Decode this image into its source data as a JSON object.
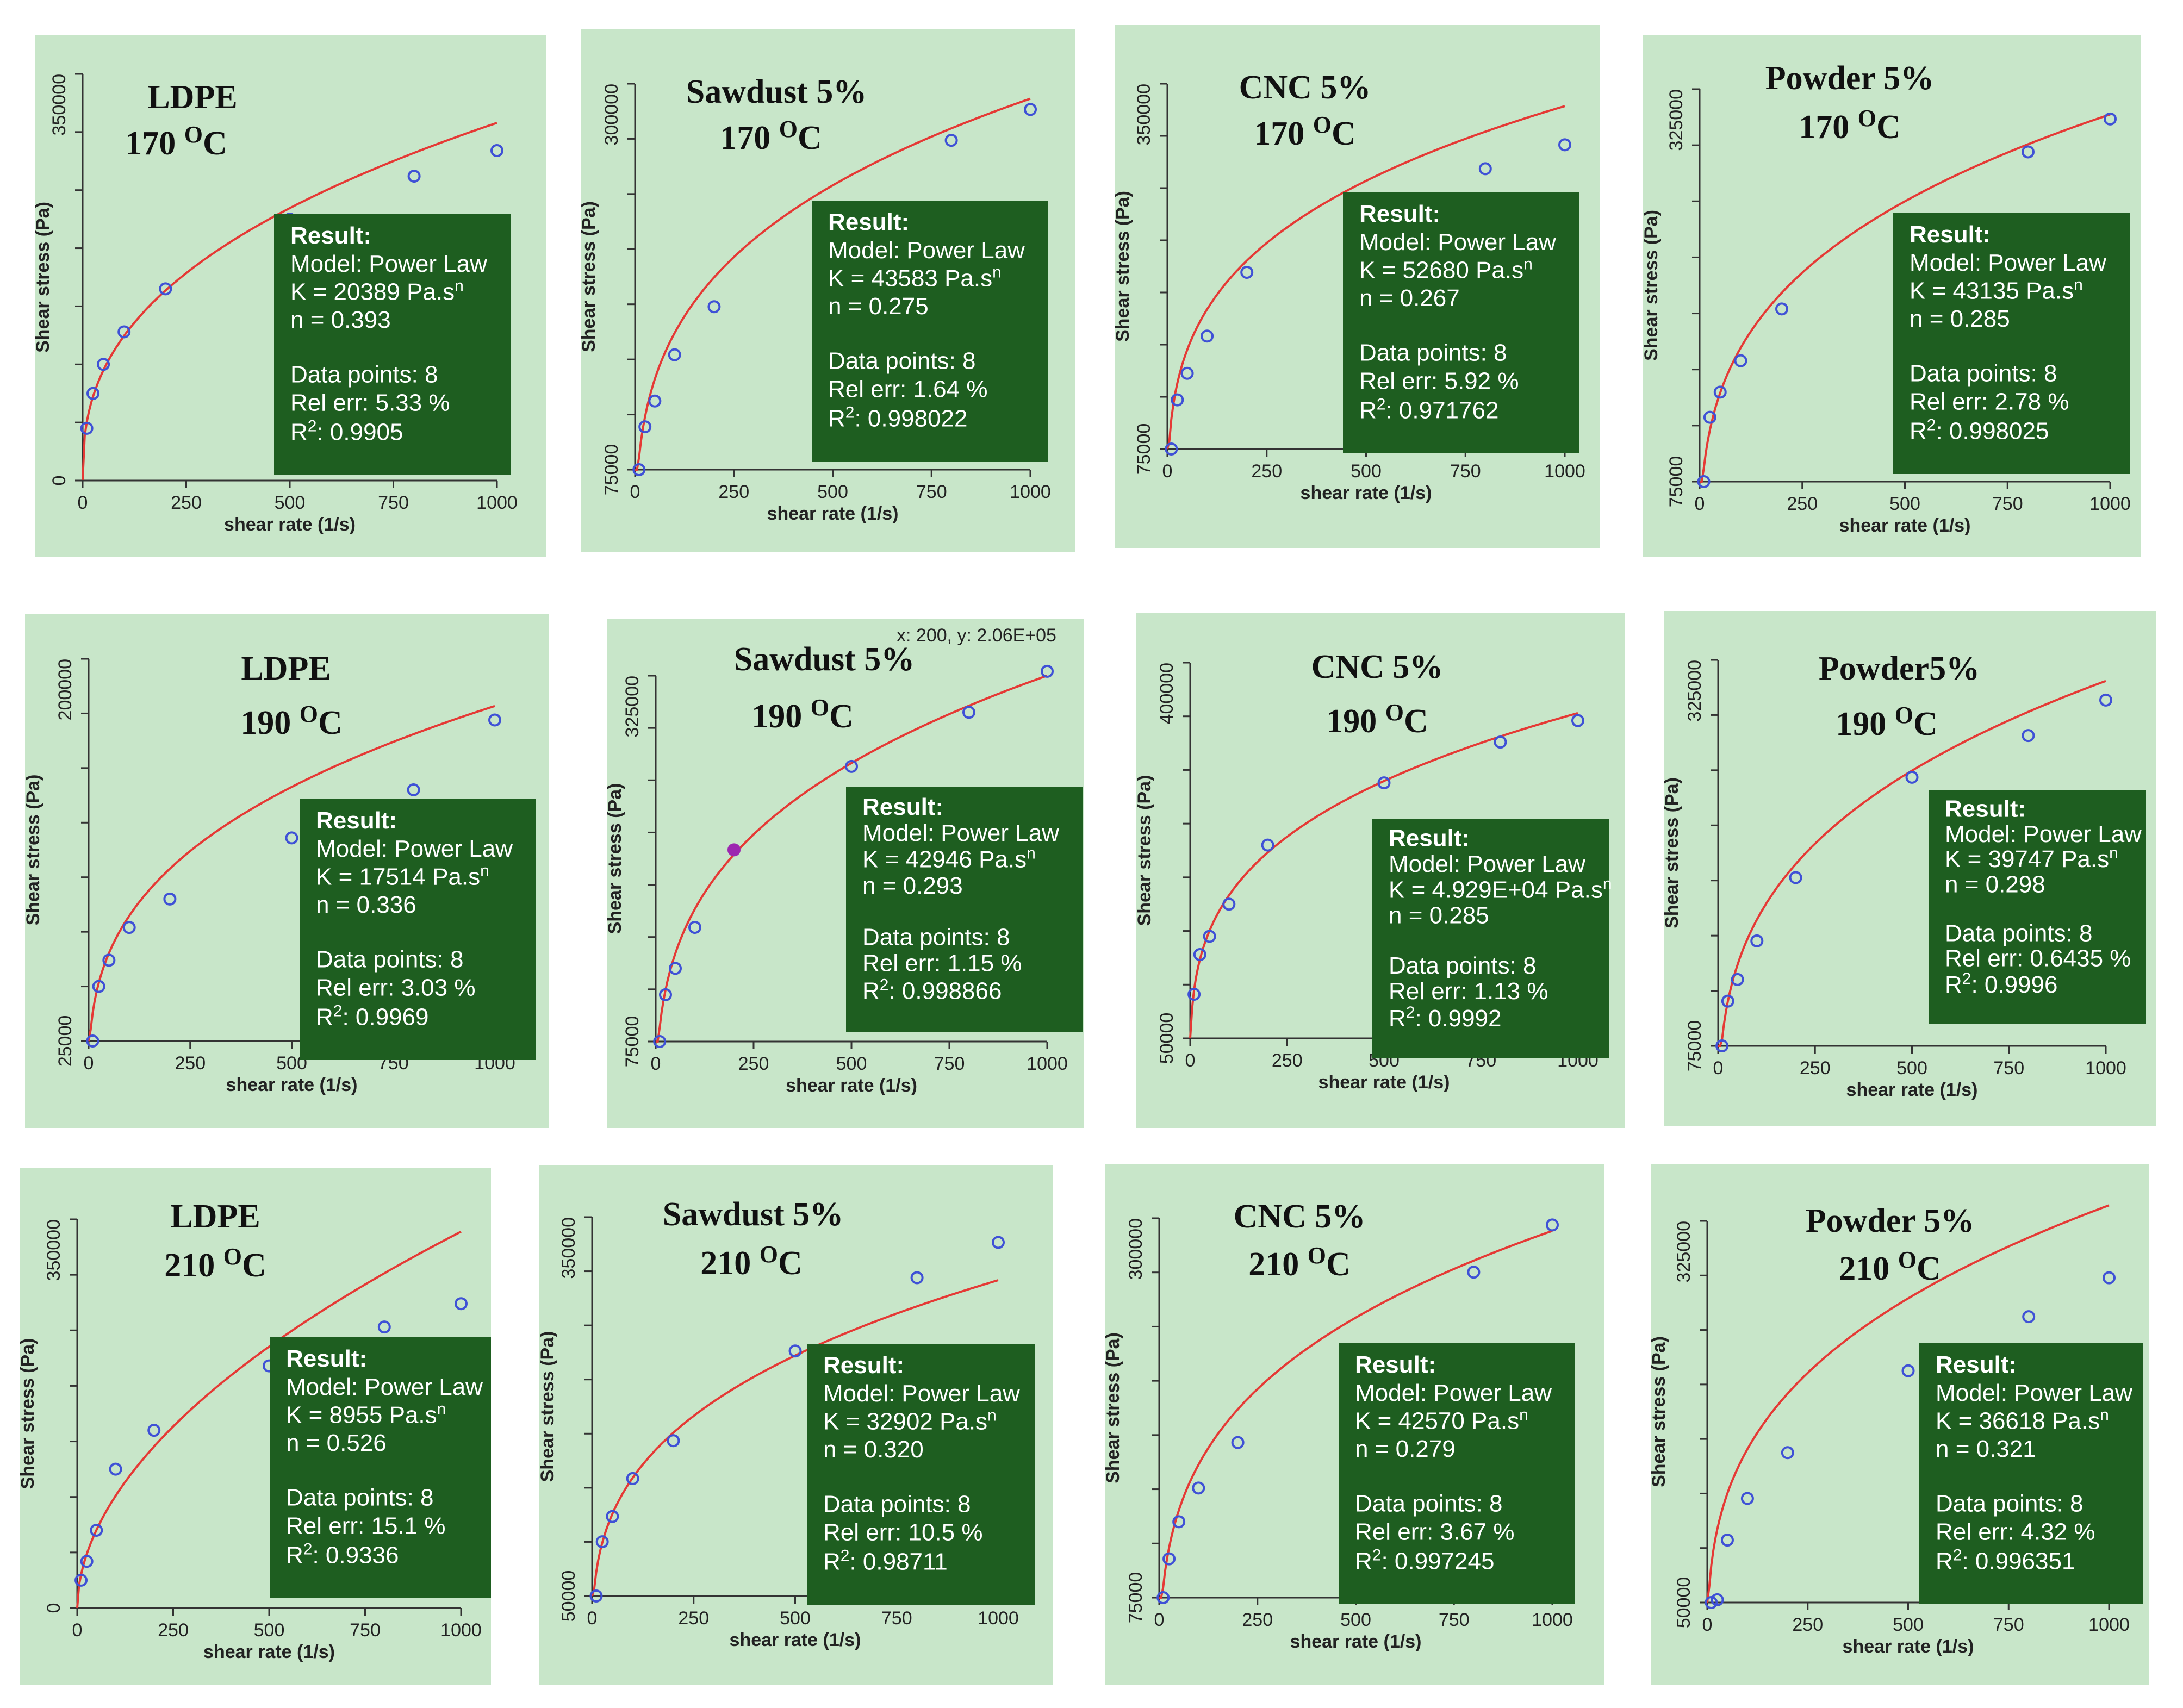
{
  "chart_data": [
    {
      "type": "scatter",
      "title": "LDPE",
      "temperature": "170",
      "temp_unit": "OC",
      "xlabel": "shear rate (1/s)",
      "ylabel": "Shear stress (Pa)",
      "xticks": [
        "0",
        "250",
        "500",
        "750",
        "1000"
      ],
      "ytick_min": "0",
      "ytick_max": "350000",
      "xlim": [
        0,
        1000
      ],
      "ylim": [
        0,
        350000
      ],
      "x": [
        10,
        25,
        50,
        100,
        200,
        500,
        800,
        1000
      ],
      "y": [
        45000,
        75000,
        100000,
        128000,
        165000,
        225000,
        262000,
        284000
      ],
      "fit": {
        "K": 20389,
        "n": 0.393
      },
      "result": {
        "heading": "Result:",
        "model": "Model: Power Law",
        "k_text": "K = 20389 Pa.s",
        "k_sup": "n",
        "n_text": "n = 0.393",
        "points": "Data points: 8",
        "rel_err": "Rel err: 5.33 %",
        "r2_prefix": "R",
        "r2_sup": "2",
        "r2_value": ": 0.9905"
      }
    },
    {
      "type": "scatter",
      "title": "Sawdust 5%",
      "temperature": "170",
      "temp_unit": "OC",
      "xlabel": "shear rate (1/s)",
      "ylabel": "Shear stress (Pa)",
      "xticks": [
        "0",
        "250",
        "500",
        "750",
        "1000"
      ],
      "ytick_min": "75000",
      "ytick_max": "300000",
      "xlim": [
        0,
        1000
      ],
      "ylim": [
        75000,
        300000
      ],
      "x": [
        10,
        25,
        50,
        100,
        200,
        500,
        800,
        1000
      ],
      "y": [
        75000,
        100000,
        115000,
        142000,
        170000,
        228000,
        267000,
        285000
      ],
      "fit": {
        "K": 43583,
        "n": 0.275
      },
      "result": {
        "heading": "Result:",
        "model": "Model: Power Law",
        "k_text": "K = 43583 Pa.s",
        "k_sup": "n",
        "n_text": "n = 0.275",
        "points": "Data points: 8",
        "rel_err": "Rel err: 1.64 %",
        "r2_prefix": "R",
        "r2_sup": "2",
        "r2_value": ": 0.998022"
      }
    },
    {
      "type": "scatter",
      "title": "CNC 5%",
      "temperature": "170",
      "temp_unit": "OC",
      "xlabel": "shear rate (1/s)",
      "ylabel": "Shear stress (Pa)",
      "xticks": [
        "0",
        "250",
        "500",
        "750",
        "1000"
      ],
      "ytick_min": "75000",
      "ytick_max": "350000",
      "xlim": [
        0,
        1000
      ],
      "ylim": [
        75000,
        350000
      ],
      "x": [
        10,
        25,
        50,
        100,
        200,
        500,
        800,
        1000
      ],
      "y": [
        75000,
        112000,
        132000,
        160000,
        208000,
        260000,
        286000,
        304000
      ],
      "fit": {
        "K": 52680,
        "n": 0.267
      },
      "result": {
        "heading": "Result:",
        "model": "Model: Power Law",
        "k_text": "K = 52680 Pa.s",
        "k_sup": "n",
        "n_text": "n = 0.267",
        "points": "Data points: 8",
        "rel_err": "Rel err: 5.92 %",
        "r2_prefix": "R",
        "r2_sup": "2",
        "r2_value": ": 0.971762"
      }
    },
    {
      "type": "scatter",
      "title": "Powder 5%",
      "temperature": "170",
      "temp_unit": "OC",
      "xlabel": "shear rate (1/s)",
      "ylabel": "Shear stress (Pa)",
      "xticks": [
        "0",
        "250",
        "500",
        "750",
        "1000"
      ],
      "ytick_min": "75000",
      "ytick_max": "325000",
      "xlim": [
        0,
        1000
      ],
      "ylim": [
        75000,
        325000
      ],
      "x": [
        10,
        25,
        50,
        100,
        200,
        500,
        800,
        1000
      ],
      "y": [
        75000,
        116000,
        132000,
        152000,
        185000,
        240000,
        285000,
        306000
      ],
      "fit": {
        "K": 43135,
        "n": 0.285
      },
      "result": {
        "heading": "Result:",
        "model": "Model: Power Law",
        "k_text": "K = 43135 Pa.s",
        "k_sup": "n",
        "n_text": "n = 0.285",
        "points": "Data points: 8",
        "rel_err": "Rel err: 2.78 %",
        "r2_prefix": "R",
        "r2_sup": "2",
        "r2_value": ": 0.998025"
      }
    },
    {
      "type": "scatter",
      "title": "LDPE",
      "temperature": "190",
      "temp_unit": "OC",
      "xlabel": "shear rate (1/s)",
      "ylabel": "Shear stress (Pa)",
      "xticks": [
        "0",
        "250",
        "500",
        "750",
        "1000"
      ],
      "ytick_min": "25000",
      "ytick_max": "200000",
      "xlim": [
        0,
        1000
      ],
      "ylim": [
        25000,
        200000
      ],
      "x": [
        10,
        25,
        50,
        100,
        200,
        500,
        800,
        1000
      ],
      "y": [
        25000,
        50000,
        62000,
        77000,
        90000,
        118000,
        140000,
        172000
      ],
      "fit": {
        "K": 17514,
        "n": 0.336
      },
      "result": {
        "heading": "Result:",
        "model": "Model: Power Law",
        "k_text": "K = 17514 Pa.s",
        "k_sup": "n",
        "n_text": "n = 0.336",
        "points": "Data points: 8",
        "rel_err": "Rel err: 3.03 %",
        "r2_prefix": "R",
        "r2_sup": "2",
        "r2_value": ": 0.9969"
      }
    },
    {
      "type": "scatter",
      "title": "Sawdust 5%",
      "temperature": "190",
      "temp_unit": "OC",
      "xlabel": "shear rate (1/s)",
      "ylabel": "Shear stress (Pa)",
      "cursor_readout": "x: 200, y: 2.06E+05",
      "xticks": [
        "0",
        "250",
        "500",
        "750",
        "1000"
      ],
      "ytick_min": "75000",
      "ytick_max": "325000",
      "xlim": [
        0,
        1000
      ],
      "ylim": [
        75000,
        325000
      ],
      "x": [
        10,
        25,
        50,
        100,
        200,
        500,
        800,
        1000
      ],
      "y": [
        75000,
        107000,
        125000,
        153000,
        206000,
        263000,
        300000,
        328000
      ],
      "fit": {
        "K": 42946,
        "n": 0.293
      },
      "result": {
        "heading": "Result:",
        "model": "Model: Power Law",
        "k_text": "K = 42946 Pa.s",
        "k_sup": "n",
        "n_text": "n = 0.293",
        "points": "Data points: 8",
        "rel_err": "Rel err: 1.15 %",
        "r2_prefix": "R",
        "r2_sup": "2",
        "r2_value": ": 0.998866"
      }
    },
    {
      "type": "scatter",
      "title": "CNC 5%",
      "temperature": "190",
      "temp_unit": "OC",
      "xlabel": "shear rate (1/s)",
      "ylabel": "Shear stress (Pa)",
      "xticks": [
        "0",
        "250",
        "500",
        "750",
        "1000"
      ],
      "ytick_min": "50000",
      "ytick_max": "400000",
      "xlim": [
        0,
        1000
      ],
      "ylim": [
        50000,
        400000
      ],
      "x": [
        10,
        25,
        50,
        100,
        200,
        500,
        800,
        1000
      ],
      "y": [
        91000,
        128000,
        145000,
        175000,
        230000,
        288000,
        326000,
        346000
      ],
      "fit": {
        "K": 49290,
        "n": 0.285
      },
      "result": {
        "heading": "Result:",
        "model": "Model: Power Law",
        "k_text": "K = 4.929E+04 Pa.s",
        "k_sup": "n",
        "n_text": "n = 0.285",
        "points": "Data points: 8",
        "rel_err": "Rel err: 1.13 %",
        "r2_prefix": "R",
        "r2_sup": "2",
        "r2_value": ": 0.9992"
      }
    },
    {
      "type": "scatter",
      "title": "Powder5%",
      "temperature": "190",
      "temp_unit": "OC",
      "xlabel": "shear rate (1/s)",
      "ylabel": "Shear stress (Pa)",
      "xticks": [
        "0",
        "250",
        "500",
        "750",
        "1000"
      ],
      "ytick_min": "75000",
      "ytick_max": "325000",
      "xlim": [
        0,
        1000
      ],
      "ylim": [
        75000,
        325000
      ],
      "x": [
        10,
        25,
        50,
        100,
        200,
        500,
        800,
        1000
      ],
      "y": [
        75000,
        104000,
        118000,
        143000,
        184000,
        249000,
        276000,
        299000
      ],
      "fit": {
        "K": 39747,
        "n": 0.298
      },
      "result": {
        "heading": "Result:",
        "model": "Model: Power Law",
        "k_text": "K = 39747 Pa.s",
        "k_sup": "n",
        "n_text": "n = 0.298",
        "points": "Data points: 8",
        "rel_err": "Rel err: 0.6435 %",
        "r2_prefix": "R",
        "r2_sup": "2",
        "r2_value": ": 0.9996"
      }
    },
    {
      "type": "scatter",
      "title": "LDPE",
      "temperature": "210",
      "temp_unit": "OC",
      "xlabel": "shear rate (1/s)",
      "ylabel": "Shear stress (Pa)",
      "xticks": [
        "0",
        "250",
        "500",
        "750",
        "1000"
      ],
      "ytick_min": "0",
      "ytick_max": "350000",
      "xlim": [
        0,
        1000
      ],
      "ylim": [
        0,
        350000
      ],
      "x": [
        10,
        25,
        50,
        100,
        200,
        500,
        800,
        1000
      ],
      "y": [
        25000,
        42000,
        70000,
        125000,
        160000,
        218000,
        253000,
        274000
      ],
      "fit": {
        "K": 8955,
        "n": 0.526
      },
      "result": {
        "heading": "Result:",
        "model": "Model: Power Law",
        "k_text": "K = 8955 Pa.s",
        "k_sup": "n",
        "n_text": "n = 0.526",
        "points": "Data points: 8",
        "rel_err": "Rel err: 15.1 %",
        "r2_prefix": "R",
        "r2_sup": "2",
        "r2_value": ": 0.9336"
      }
    },
    {
      "type": "scatter",
      "title": "Sawdust  5%",
      "temperature": "210",
      "temp_unit": "OC",
      "xlabel": "shear rate (1/s)",
      "ylabel": "Shear stress (Pa)",
      "xticks": [
        "0",
        "250",
        "500",
        "750",
        "1000"
      ],
      "ytick_min": "50000",
      "ytick_max": "350000",
      "xlim": [
        0,
        1000
      ],
      "ylim": [
        50000,
        350000
      ],
      "x": [
        10,
        25,
        50,
        100,
        200,
        500,
        800,
        1000
      ],
      "y": [
        50000,
        93000,
        113000,
        143000,
        173000,
        244000,
        302000,
        330000
      ],
      "fit": {
        "K": 32902,
        "n": 0.32
      },
      "result": {
        "heading": "Result:",
        "model": "Model: Power Law",
        "k_text": "K = 32902 Pa.s",
        "k_sup": "n",
        "n_text": "n = 0.320",
        "points": "Data points: 8",
        "rel_err": "Rel err: 10.5 %",
        "r2_prefix": "R",
        "r2_sup": "2",
        "r2_value": ": 0.98711"
      }
    },
    {
      "type": "scatter",
      "title": "CNC 5%",
      "temperature": "210",
      "temp_unit": "OC",
      "xlabel": "shear rate (1/s)",
      "ylabel": "Shear stress (Pa)",
      "xticks": [
        "0",
        "250",
        "500",
        "750",
        "1000"
      ],
      "ytick_min": "75000",
      "ytick_max": "300000",
      "xlim": [
        0,
        1000
      ],
      "ylim": [
        75000,
        300000
      ],
      "x": [
        10,
        25,
        50,
        100,
        200,
        500,
        800,
        1000
      ],
      "y": [
        75000,
        98000,
        120000,
        140000,
        167000,
        221000,
        268000,
        296000
      ],
      "fit": {
        "K": 42570,
        "n": 0.279
      },
      "result": {
        "heading": "Result:",
        "model": "Model: Power Law",
        "k_text": "K = 42570 Pa.s",
        "k_sup": "n",
        "n_text": "n = 0.279",
        "points": "Data points: 8",
        "rel_err": "Rel err: 3.67 %",
        "r2_prefix": "R",
        "r2_sup": "2",
        "r2_value": ": 0.997245"
      }
    },
    {
      "type": "scatter",
      "title": "Powder 5%",
      "temperature": "210",
      "temp_unit": "OC",
      "xlabel": "shear rate (1/s)",
      "ylabel": "Shear stress (Pa)",
      "xticks": [
        "0",
        "250",
        "500",
        "750",
        "1000"
      ],
      "ytick_min": "50000",
      "ytick_max": "325000",
      "xlim": [
        0,
        1000
      ],
      "ylim": [
        50000,
        325000
      ],
      "x": [
        10,
        25,
        50,
        100,
        200,
        500,
        800,
        1000
      ],
      "y": [
        50000,
        52000,
        95000,
        125000,
        158000,
        217000,
        256000,
        284000
      ],
      "fit": {
        "K": 36618,
        "n": 0.321
      },
      "result": {
        "heading": "Result:",
        "model": "Model: Power Law",
        "k_text": "K = 36618 Pa.s",
        "k_sup": "n",
        "n_text": "n = 0.321",
        "points": "Data points: 8",
        "rel_err": "Rel err: 4.32 %",
        "r2_prefix": "R",
        "r2_sup": "2",
        "r2_value": ": 0.996351"
      }
    }
  ],
  "colors": {
    "panel_bg": "#c8e6c9",
    "result_box": "#1e5e20",
    "fit_line": "#e53935",
    "marker": "#3f51d6",
    "axis": "#333333",
    "highlight": "#9c27b0"
  }
}
